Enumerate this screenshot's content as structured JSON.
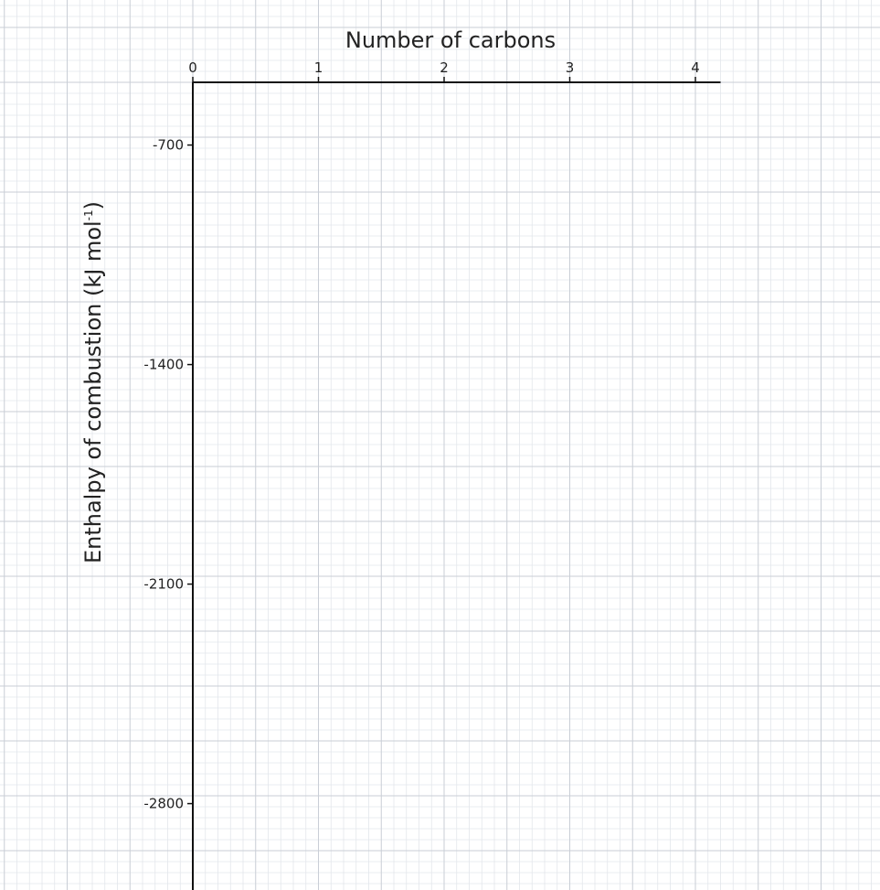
{
  "chart_data": {
    "type": "line",
    "title": "",
    "xlabel": "Number of carbons",
    "ylabel": "Enthalpy of combustion (kJ mol",
    "ylabel_superscript": "-1",
    "ylabel_suffix": ")",
    "x_axis_position": "top",
    "x_ticks": [
      0,
      1,
      2,
      3,
      4
    ],
    "x_tick_labels": [
      "0",
      "1",
      "2",
      "3",
      "4"
    ],
    "y_ticks": [
      -700,
      -1400,
      -2100,
      -2800
    ],
    "y_tick_labels": [
      "-700",
      "-1400",
      "-2100",
      "-2800"
    ],
    "xlim": [
      0,
      4.2
    ],
    "ylim": [
      -3100,
      -500
    ],
    "grid": true,
    "grid_color_major": "#c9ced6",
    "grid_color_minor": "#e3e6eb",
    "axis_color": "#111111",
    "series": []
  }
}
